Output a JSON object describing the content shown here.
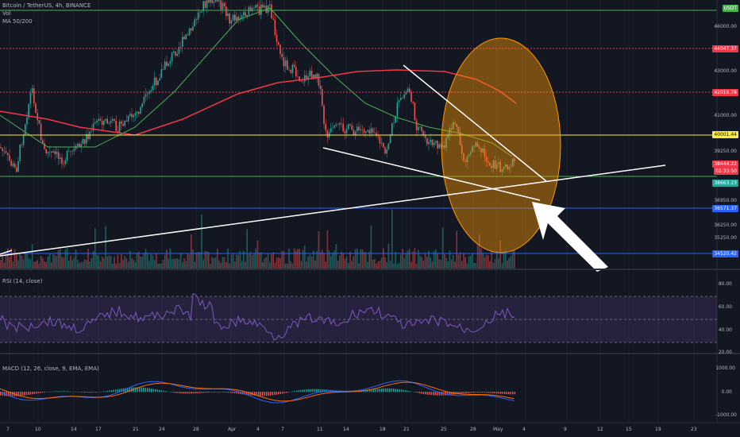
{
  "header": {
    "symbol_line": "Bitcoin / TetherUS, 4h, BINANCE",
    "vol_label": "Vol",
    "ma_label": "MA 50/200"
  },
  "axis": {
    "currency": "USDT",
    "price_ticks": [
      "46000.00",
      "43000.00",
      "41000.00",
      "39250.00",
      "36950.00",
      "36250.00",
      "35250.00"
    ],
    "date_ticks": [
      "7",
      "10",
      "14",
      "17",
      "21",
      "24",
      "28",
      "Apr",
      "4",
      "7",
      "11",
      "14",
      "18",
      "21",
      "25",
      "28",
      "May",
      "4",
      "9",
      "12",
      "15",
      "19",
      "23"
    ]
  },
  "levels": [
    {
      "label": "44047.37",
      "color": "#f23645",
      "style": "dotted"
    },
    {
      "label": "42018.78",
      "color": "#f23645",
      "style": "dotted"
    },
    {
      "label": "40001.44",
      "color": "#ffeb3b",
      "style": "solid"
    },
    {
      "label": "38663.23",
      "color": "#26a69a",
      "style": "solid"
    },
    {
      "label": "36571.37",
      "color": "#2962ff",
      "style": "solid"
    },
    {
      "label": "34520.42",
      "color": "#2962ff",
      "style": "solid"
    }
  ],
  "current_price": {
    "label": "38444.22",
    "countdown": "02:33:50",
    "color": "#f23645"
  },
  "rsi_panel": {
    "label": "RSI (14, close)",
    "ticks": [
      "80.00",
      "60.00",
      "40.00",
      "20.00"
    ]
  },
  "macd_panel": {
    "label": "MACD (12, 26, close, 9, EMA, EMA)",
    "ticks": [
      "1000.00",
      "0.00",
      "-1000.00"
    ]
  },
  "colors": {
    "background": "#131722",
    "up": "#26a69a",
    "down": "#ef5350",
    "ma50": "#4caf50",
    "ma200": "#f23645",
    "rsi": "#7e57c2",
    "macd": "#2962ff",
    "signal": "#ff6d00",
    "highlight_ellipse": "#ff9800"
  }
}
